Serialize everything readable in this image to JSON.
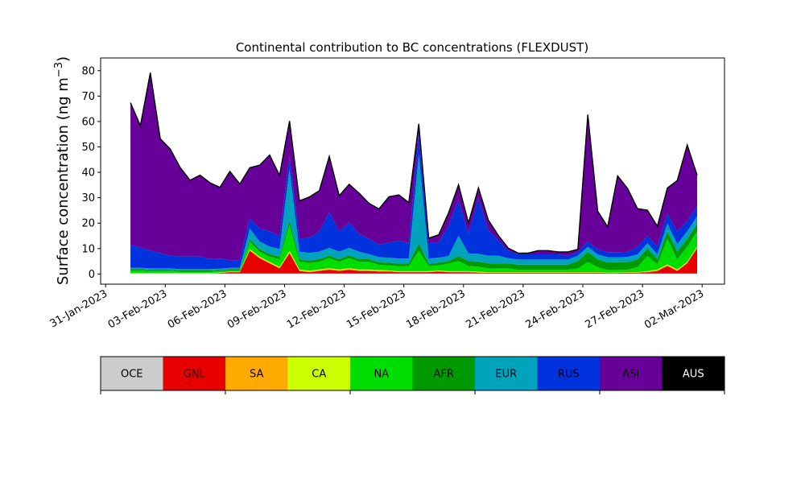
{
  "chart_data": {
    "type": "area",
    "stacked": true,
    "title": "Continental contribution to BC concentrations (FLEXDUST)",
    "xlabel": "",
    "ylabel": "Surface concentration (ng m⁻³)",
    "ylim": [
      -4,
      85
    ],
    "yticks": [
      0,
      10,
      20,
      30,
      40,
      50,
      60,
      70,
      80
    ],
    "xlim": [
      "2023-01-30T18:00",
      "2023-03-03T03:00"
    ],
    "xtick_labels": [
      "31-Jan-2023",
      "03-Feb-2023",
      "06-Feb-2023",
      "09-Feb-2023",
      "12-Feb-2023",
      "15-Feb-2023",
      "18-Feb-2023",
      "21-Feb-2023",
      "24-Feb-2023",
      "27-Feb-2023",
      "02-Mar-2023"
    ],
    "xticks": [
      "2023-01-31",
      "2023-02-03",
      "2023-02-06",
      "2023-02-09",
      "2023-02-12",
      "2023-02-15",
      "2023-02-18",
      "2023-02-21",
      "2023-02-24",
      "2023-02-27",
      "2023-03-02"
    ],
    "grid": false,
    "x": [
      "2023-02-01T06:00",
      "2023-02-01T18:00",
      "2023-02-02T06:00",
      "2023-02-02T18:00",
      "2023-02-03T06:00",
      "2023-02-03T18:00",
      "2023-02-04T06:00",
      "2023-02-04T18:00",
      "2023-02-05T06:00",
      "2023-02-05T18:00",
      "2023-02-06T06:00",
      "2023-02-06T18:00",
      "2023-02-07T06:00",
      "2023-02-07T18:00",
      "2023-02-08T06:00",
      "2023-02-08T18:00",
      "2023-02-09T06:00",
      "2023-02-09T18:00",
      "2023-02-10T06:00",
      "2023-02-10T18:00",
      "2023-02-11T06:00",
      "2023-02-11T18:00",
      "2023-02-12T06:00",
      "2023-02-12T18:00",
      "2023-02-13T06:00",
      "2023-02-13T18:00",
      "2023-02-14T06:00",
      "2023-02-14T18:00",
      "2023-02-15T06:00",
      "2023-02-15T18:00",
      "2023-02-16T06:00",
      "2023-02-16T18:00",
      "2023-02-17T06:00",
      "2023-02-17T18:00",
      "2023-02-18T06:00",
      "2023-02-18T18:00",
      "2023-02-19T06:00",
      "2023-02-19T18:00",
      "2023-02-20T06:00",
      "2023-02-20T18:00",
      "2023-02-21T06:00",
      "2023-02-21T18:00",
      "2023-02-22T06:00",
      "2023-02-22T18:00",
      "2023-02-23T06:00",
      "2023-02-23T18:00",
      "2023-02-24T06:00",
      "2023-02-24T18:00",
      "2023-02-25T06:00",
      "2023-02-25T18:00",
      "2023-02-26T06:00",
      "2023-02-26T18:00",
      "2023-02-27T06:00",
      "2023-02-27T18:00",
      "2023-02-28T06:00",
      "2023-02-28T18:00",
      "2023-03-01T06:00",
      "2023-03-01T18:00"
    ],
    "series": [
      {
        "name": "OCE",
        "color": "#cccccc",
        "values": [
          0.2,
          0.2,
          0.2,
          0.2,
          0.2,
          0.2,
          0.2,
          0.2,
          0.2,
          0.2,
          0.2,
          0.2,
          0.2,
          0.2,
          0.2,
          0.2,
          0.2,
          0.2,
          0.2,
          0.2,
          0.2,
          0.2,
          0.2,
          0.2,
          0.2,
          0.2,
          0.2,
          0.2,
          0.2,
          0.2,
          0.2,
          0.2,
          0.2,
          0.2,
          0.2,
          0.2,
          0.2,
          0.2,
          0.2,
          0.2,
          0.2,
          0.2,
          0.2,
          0.2,
          0.2,
          0.2,
          0.2,
          0.2,
          0.2,
          0.2,
          0.2,
          0.2,
          0.2,
          0.2,
          0.2,
          0.2,
          0.2,
          0.2
        ]
      },
      {
        "name": "GNL",
        "color": "#e60000",
        "values": [
          0,
          0,
          0,
          0,
          0,
          0,
          0,
          0,
          0,
          0.2,
          0.5,
          0.5,
          9,
          6,
          4,
          2,
          8,
          1,
          0.5,
          1,
          1.5,
          1,
          1.5,
          1,
          1,
          0.8,
          0.8,
          0.5,
          0.5,
          0.5,
          0.5,
          0.8,
          0.5,
          0.5,
          0.5,
          0.3,
          0.3,
          0.3,
          0.3,
          0.3,
          0.3,
          0.3,
          0.3,
          0.3,
          0.3,
          0.3,
          0.3,
          0.3,
          0.2,
          0.2,
          0.3,
          0.3,
          0.5,
          1,
          3,
          1,
          4,
          10
        ]
      },
      {
        "name": "SA",
        "color": "#ffaa00",
        "values": [
          0.1,
          0.1,
          0.1,
          0.1,
          0.1,
          0.1,
          0.1,
          0.1,
          0.1,
          0.1,
          0.1,
          0.1,
          0.3,
          0.3,
          0.3,
          0.3,
          0.5,
          0.3,
          0.3,
          0.3,
          0.3,
          0.3,
          0.3,
          0.3,
          0.3,
          0.3,
          0.2,
          0.2,
          0.2,
          0.2,
          0.2,
          0.2,
          0.2,
          0.2,
          0.2,
          0.2,
          0.1,
          0.1,
          0.1,
          0.1,
          0.1,
          0.1,
          0.1,
          0.1,
          0.1,
          0.1,
          0.1,
          0.1,
          0.1,
          0.1,
          0.1,
          0.1,
          0.2,
          0.3,
          0.3,
          0.3,
          0.3,
          0.3
        ]
      },
      {
        "name": "CA",
        "color": "#ccff00",
        "values": [
          0.1,
          0.1,
          0.1,
          0.1,
          0.1,
          0.1,
          0.1,
          0.1,
          0.1,
          0.1,
          0.1,
          0.1,
          0.3,
          0.3,
          0.3,
          0.3,
          0.5,
          0.3,
          0.3,
          0.3,
          0.3,
          0.3,
          0.3,
          0.3,
          0.3,
          0.3,
          0.2,
          0.2,
          0.2,
          0.2,
          0.2,
          0.2,
          0.2,
          0.2,
          0.2,
          0.2,
          0.1,
          0.1,
          0.1,
          0.1,
          0.1,
          0.1,
          0.1,
          0.1,
          0.1,
          0.1,
          0.1,
          0.1,
          0.1,
          0.1,
          0.1,
          0.1,
          0.2,
          0.3,
          0.3,
          0.3,
          0.3,
          0.3
        ]
      },
      {
        "name": "NA",
        "color": "#00dd00",
        "values": [
          1,
          1,
          0.8,
          0.8,
          0.8,
          0.5,
          0.5,
          0.5,
          0.5,
          0.5,
          0.5,
          0.5,
          3,
          2,
          2,
          3,
          10,
          3,
          3,
          3,
          4,
          3,
          4,
          3,
          3,
          2,
          2,
          2,
          2,
          8,
          2,
          2,
          3,
          4,
          2,
          2,
          1.5,
          1.5,
          1.5,
          1,
          1,
          1,
          1,
          1,
          1,
          1.5,
          4,
          2,
          1,
          1,
          1,
          2,
          6,
          2,
          10,
          4,
          6,
          6
        ]
      },
      {
        "name": "AFR",
        "color": "#009900",
        "values": [
          0.5,
          0.5,
          0.5,
          0.5,
          0.5,
          0.5,
          0.5,
          0.5,
          0.5,
          0.5,
          0.5,
          0.5,
          1,
          1,
          1,
          1,
          2,
          1,
          1,
          1,
          1,
          1,
          1,
          1,
          1,
          1,
          1,
          1,
          1,
          3,
          1,
          1,
          1,
          2,
          2,
          2,
          2,
          2,
          2,
          2,
          2,
          2,
          2,
          2,
          2,
          3,
          4,
          3,
          3,
          3,
          3,
          3,
          3,
          2,
          3,
          3,
          3,
          3
        ]
      },
      {
        "name": "EUR",
        "color": "#00a3bb",
        "values": [
          0.5,
          0.5,
          0.5,
          0.5,
          0.5,
          0.5,
          0.5,
          0.5,
          0.5,
          0.5,
          0.5,
          0.5,
          4,
          3,
          3,
          3,
          20,
          3,
          3,
          3,
          3,
          3,
          3,
          3,
          2,
          2,
          2,
          2,
          2,
          35,
          2,
          2,
          2,
          8,
          3,
          3,
          3,
          3,
          2,
          2,
          2,
          2,
          2,
          2,
          2,
          2,
          2,
          2,
          2,
          2,
          2,
          2,
          2,
          2,
          3,
          3,
          3,
          3
        ]
      },
      {
        "name": "RUS",
        "color": "#0033dd",
        "values": [
          9,
          8,
          7,
          6,
          5,
          5,
          5,
          5,
          4,
          4,
          3,
          3,
          4,
          5,
          6,
          5,
          5,
          5,
          6,
          8,
          14,
          8,
          10,
          7,
          6,
          5,
          6,
          7,
          6,
          8,
          6,
          6,
          12,
          14,
          8,
          22,
          10,
          6,
          3,
          2,
          2,
          2,
          2,
          2,
          1.5,
          1.5,
          2,
          2,
          2,
          2,
          2,
          3,
          3,
          3,
          4,
          5,
          4,
          4
        ]
      },
      {
        "name": "ASI",
        "color": "#660099",
        "values": [
          56,
          48,
          70,
          45,
          42,
          35,
          30,
          32,
          30,
          28,
          35,
          30,
          20,
          25,
          30,
          24,
          14,
          15,
          16,
          16,
          22,
          14,
          15,
          16,
          14,
          14,
          18,
          18,
          16,
          4,
          2,
          3,
          5,
          6,
          4,
          4,
          4,
          2,
          1,
          0.5,
          0.5,
          1.5,
          1.5,
          1,
          1.5,
          1,
          50,
          15,
          10,
          30,
          25,
          15,
          10,
          8,
          10,
          20,
          30,
          12
        ]
      },
      {
        "name": "AUS",
        "color": "#000000",
        "values": [
          0,
          0,
          0,
          0,
          0,
          0,
          0,
          0,
          0,
          0,
          0,
          0,
          0,
          0,
          0,
          0,
          0,
          0,
          0,
          0,
          0,
          0,
          0,
          0,
          0,
          0,
          0,
          0,
          0,
          0,
          0,
          0,
          0,
          0,
          0,
          0,
          0,
          0,
          0,
          0,
          0,
          0,
          0,
          0,
          0,
          0,
          0,
          0,
          0,
          0,
          0,
          0,
          0,
          0,
          0,
          0,
          0,
          0
        ]
      }
    ],
    "legend": {
      "placement": "below plot",
      "entries": [
        {
          "label": "OCE",
          "color": "#cccccc",
          "text_color": "#000000"
        },
        {
          "label": "GNL",
          "color": "#e60000",
          "text_color": "#000000"
        },
        {
          "label": "SA",
          "color": "#ffaa00",
          "text_color": "#000000"
        },
        {
          "label": "CA",
          "color": "#ccff00",
          "text_color": "#000000"
        },
        {
          "label": "NA",
          "color": "#00dd00",
          "text_color": "#000000"
        },
        {
          "label": "AFR",
          "color": "#009900",
          "text_color": "#000000"
        },
        {
          "label": "EUR",
          "color": "#00a3bb",
          "text_color": "#000000"
        },
        {
          "label": "RUS",
          "color": "#0033dd",
          "text_color": "#000000"
        },
        {
          "label": "ASI",
          "color": "#660099",
          "text_color": "#000000"
        },
        {
          "label": "AUS",
          "color": "#000000",
          "text_color": "#ffffff"
        }
      ]
    }
  }
}
